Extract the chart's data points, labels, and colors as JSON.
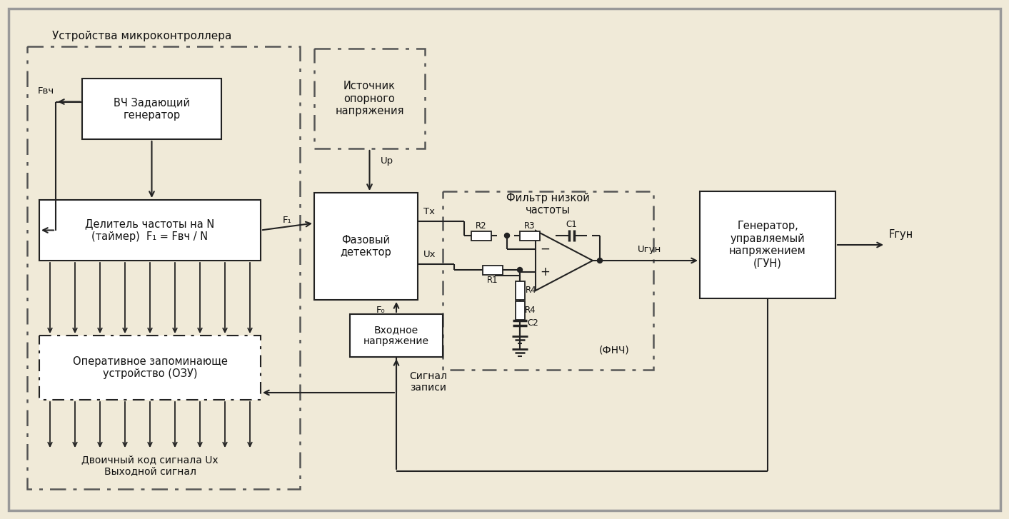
{
  "bg_color": "#f0ead8",
  "outer_border_color": "#999999",
  "box_fill_white": "#ffffff",
  "box_fill_bg": "#f0ead8",
  "line_color": "#222222",
  "dash_color": "#555555",
  "microcontroller_label": "Устройства микроконтроллера",
  "hf_gen_label": "ВЧ Задающий\nгенератор",
  "divider_label": "Делитель частоты на N\n(таймер)  F₁ = Fвч / N",
  "ref_source_label": "Источник\nопорного\nнапряжения",
  "phase_det_label": "Фазовый\nдетектор",
  "lpf_label": "Фильтр низкой\nчастоты",
  "ram_label": "Оперативное запоминающе\nустройство (ОЗУ)",
  "vco_label": "Генератор,\nуправляемый\nнапряжением\n(ГУН)",
  "input_voltage_label": "Входное\nнапряжение",
  "write_signal_label": "Сигнал\nзаписи",
  "binary_output_label": "Двоичный код сигнала Uх\nВыходной сигнал",
  "F_vch_label": "Fвч",
  "F1_label": "F₁",
  "Tx_label": "Tх",
  "Ux_label": "Uх",
  "Up_label": "Uр",
  "F0_label": "F₀",
  "U_gun_label": "Uгун",
  "F_gun_label": "Fгун",
  "R1_label": "R1",
  "R2_label": "R2",
  "R3_label": "R3",
  "R4_label": "R4",
  "C1_label": "C1",
  "C2_label": "C2",
  "fnch_label": "(ФНЧ)"
}
